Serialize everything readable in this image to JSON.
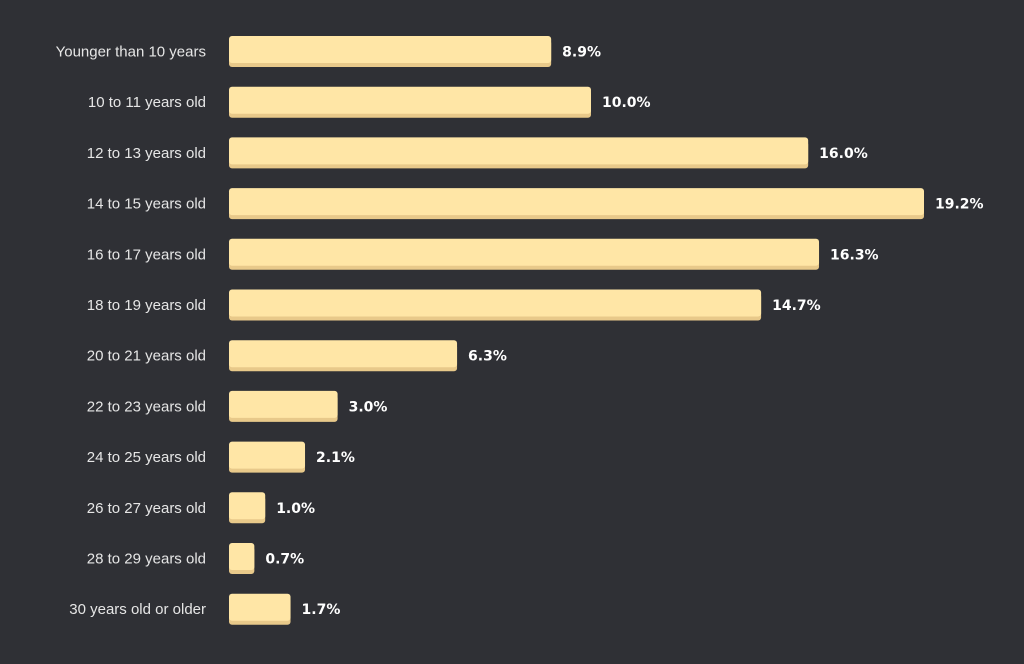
{
  "colors": {
    "background": "#2f3035",
    "bar": "#ffe6a6",
    "bar_shadow": "#e8c98a",
    "category_text": "#e6e6e6",
    "value_text": "#ffffff"
  },
  "chart_data": {
    "type": "bar",
    "orientation": "horizontal",
    "title": "",
    "xlabel": "",
    "ylabel": "",
    "grid": false,
    "xlim": [
      0,
      19.2
    ],
    "value_suffix": "%",
    "categories": [
      "Younger than 10 years",
      "10 to 11 years old",
      "12 to 13 years old",
      "14 to 15 years old",
      "16 to 17 years old",
      "18 to 19 years old",
      "20 to 21 years old",
      "22 to 23 years old",
      "24 to 25 years old",
      "26 to 27 years old",
      "28 to 29 years old",
      "30 years old or older"
    ],
    "values": [
      8.9,
      10.0,
      16.0,
      19.2,
      16.3,
      14.7,
      6.3,
      3.0,
      2.1,
      1.0,
      0.7,
      1.7
    ],
    "value_labels": [
      "8.9%",
      "10.0%",
      "16.0%",
      "19.2%",
      "16.3%",
      "14.7%",
      "6.3%",
      "3.0%",
      "2.1%",
      "1.0%",
      "0.7%",
      "1.7%"
    ]
  }
}
